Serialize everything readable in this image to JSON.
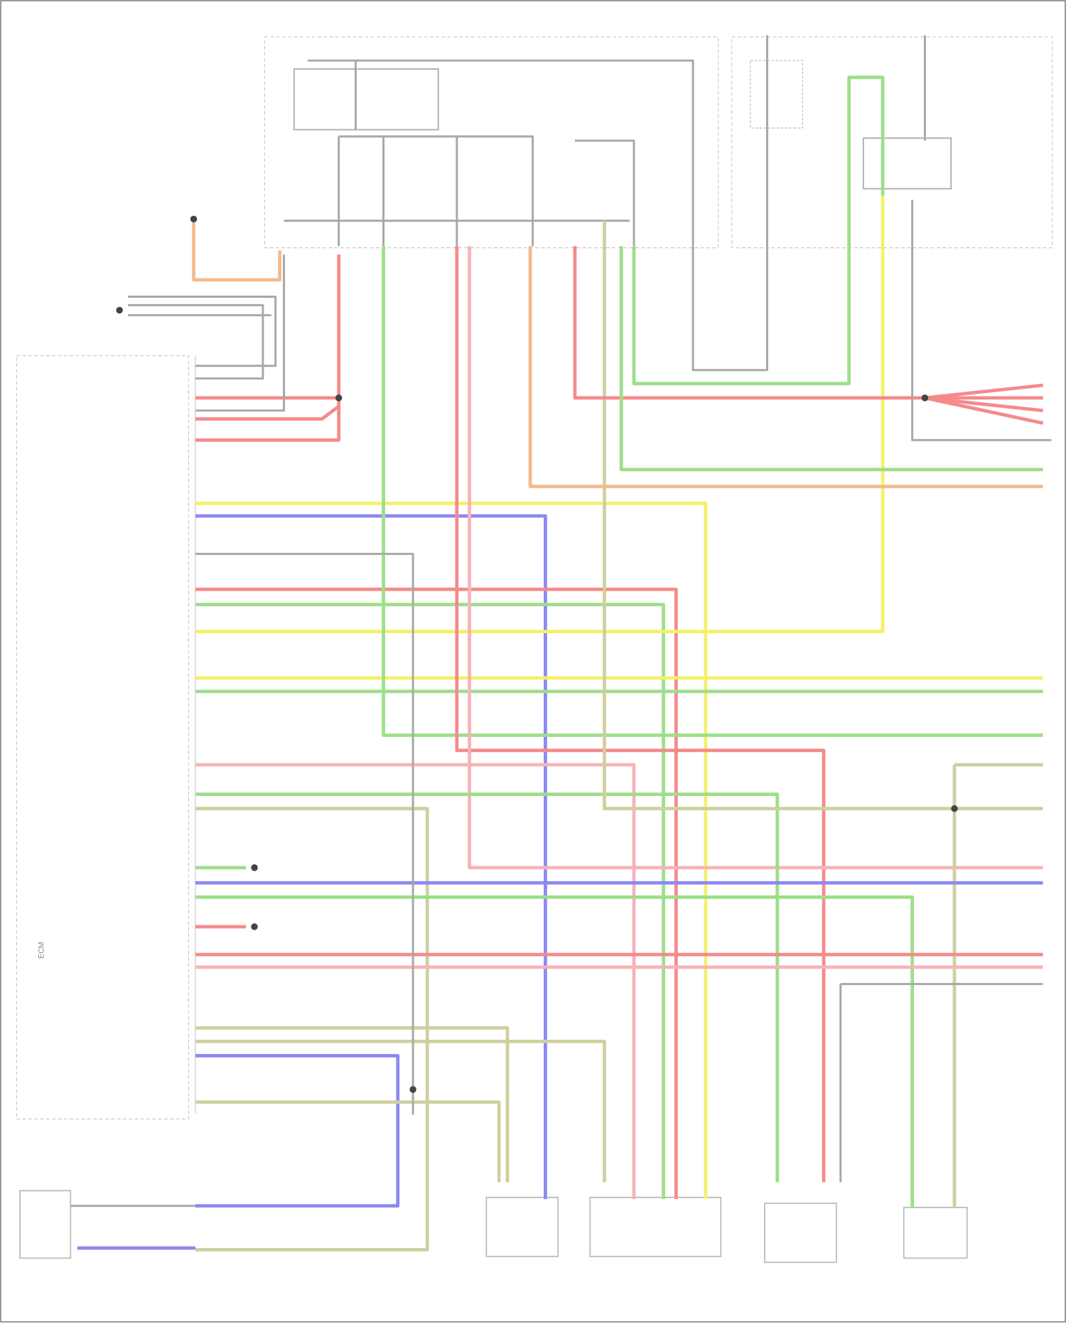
{
  "diagram": {
    "ecm_label": "ECM",
    "wire_colors": {
      "red": "#f58a8a",
      "pink": "#f7b3b8",
      "gray": "#a8a8a8",
      "green": "#9ede8a",
      "yellow": "#f4f06a",
      "blue": "#8c88f2",
      "orange": "#f7b98a",
      "olive": "#cfcfa0"
    }
  }
}
